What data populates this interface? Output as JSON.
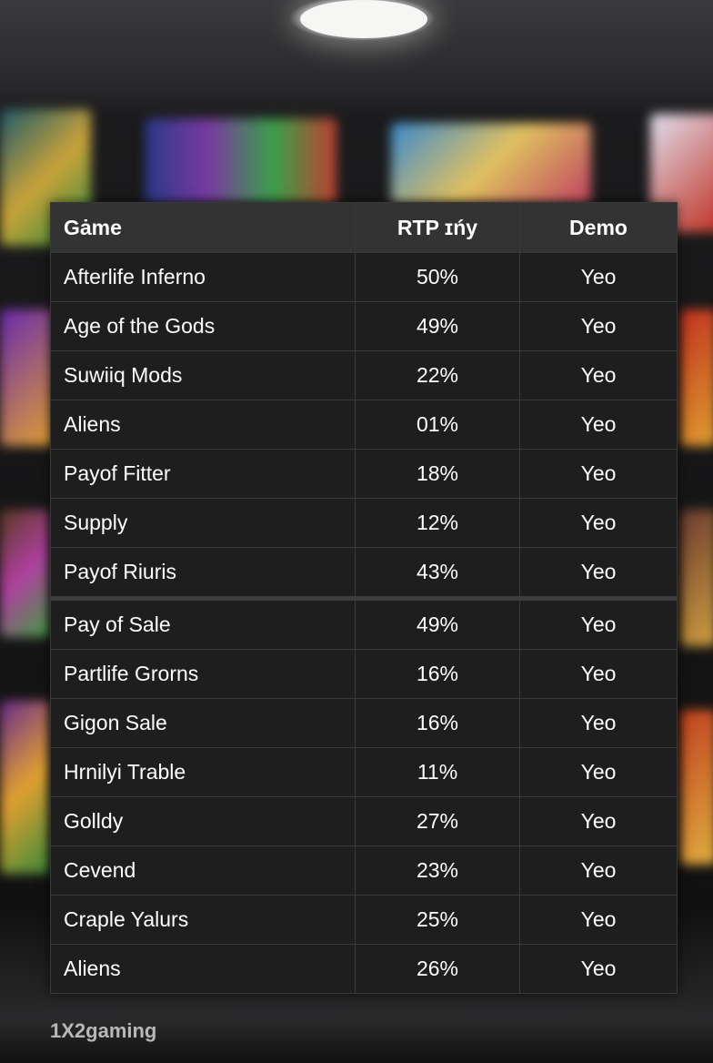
{
  "table": {
    "headers": {
      "game": "Gȧme",
      "rtp": "RTP ɪńy",
      "demo": "Demo"
    },
    "rows": [
      {
        "game": "Afterlife Inferno",
        "rtp": "50%",
        "demo": "Yeo"
      },
      {
        "game": "Age of the Gods",
        "rtp": "49%",
        "demo": "Yeo"
      },
      {
        "game": "Suwiiq Mods",
        "rtp": "22%",
        "demo": "Yeo"
      },
      {
        "game": "Aliens",
        "rtp": "01%",
        "demo": "Yeo"
      },
      {
        "game": "Payof Fitter",
        "rtp": "18%",
        "demo": "Yeo"
      },
      {
        "game": "Supply",
        "rtp": "12%",
        "demo": "Yeo"
      },
      {
        "game": "Payof Riuris",
        "rtp": "43%",
        "demo": "Yeo"
      },
      {
        "game": "Pay of Sale",
        "rtp": "49%",
        "demo": "Yeo"
      },
      {
        "game": "Partlife Grorns",
        "rtp": "16%",
        "demo": "Yeo"
      },
      {
        "game": "Gigon Sale",
        "rtp": "16%",
        "demo": "Yeo"
      },
      {
        "game": "Hrnilyi Trable",
        "rtp": "11%",
        "demo": "Yeo"
      },
      {
        "game": "Golldy",
        "rtp": "27%",
        "demo": "Yeo"
      },
      {
        "game": "Cevend",
        "rtp": "23%",
        "demo": "Yeo"
      },
      {
        "game": "Craple Yalurs",
        "rtp": "25%",
        "demo": "Yeo"
      },
      {
        "game": "Aliens",
        "rtp": "26%",
        "demo": "Yeo"
      }
    ]
  },
  "brand": "1X2gaming"
}
